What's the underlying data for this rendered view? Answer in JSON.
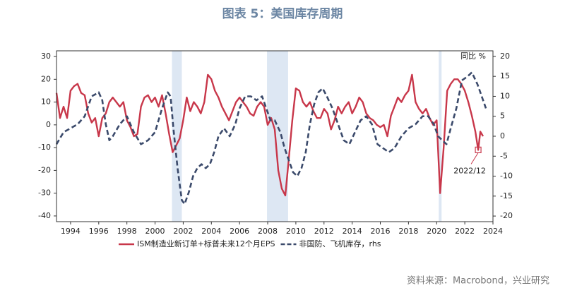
{
  "chart_data": {
    "type": "line",
    "title": "图表 5：美国库存周期",
    "source": "资料来源：Macrobond，兴业研究",
    "y2_label": "同比 %",
    "xlim": [
      1993,
      2024
    ],
    "xticks": [
      1994,
      1996,
      1998,
      2000,
      2002,
      2004,
      2006,
      2008,
      2010,
      2012,
      2014,
      2016,
      2018,
      2020,
      2022,
      2024
    ],
    "ylim": [
      -42.5,
      32.5
    ],
    "yticks": [
      30,
      20,
      10,
      0,
      -10,
      -20,
      -30,
      -40
    ],
    "y2lim": [
      -21.4,
      21.4
    ],
    "y2ticks": [
      20,
      15,
      10,
      5,
      0,
      -5,
      -10,
      -15,
      -20
    ],
    "shaded": [
      [
        2001.2,
        2001.9
      ],
      [
        2007.95,
        2009.45
      ],
      [
        2020.15,
        2020.35
      ]
    ],
    "shade_color": "#dde7f3",
    "annotation": {
      "text": "2022/12",
      "x": 2022.95,
      "y": -11
    },
    "series": [
      {
        "name": "ISM制造业新订单+标普未来12个月EPS",
        "color": "#c8374a",
        "dash": false,
        "x": [
          1993,
          1993.25,
          1993.5,
          1993.75,
          1994,
          1994.25,
          1994.5,
          1994.75,
          1995,
          1995.25,
          1995.5,
          1995.75,
          1996,
          1996.25,
          1996.5,
          1996.75,
          1997,
          1997.25,
          1997.5,
          1997.75,
          1998,
          1998.25,
          1998.5,
          1998.75,
          1999,
          1999.25,
          1999.5,
          1999.75,
          2000,
          2000.25,
          2000.5,
          2000.75,
          2001,
          2001.25,
          2001.5,
          2001.75,
          2002,
          2002.25,
          2002.5,
          2002.75,
          2003,
          2003.25,
          2003.5,
          2003.75,
          2004,
          2004.25,
          2004.5,
          2004.75,
          2005,
          2005.25,
          2005.5,
          2005.75,
          2006,
          2006.25,
          2006.5,
          2006.75,
          2007,
          2007.25,
          2007.5,
          2007.75,
          2008,
          2008.25,
          2008.5,
          2008.75,
          2009,
          2009.25,
          2009.5,
          2009.75,
          2010,
          2010.25,
          2010.5,
          2010.75,
          2011,
          2011.25,
          2011.5,
          2011.75,
          2012,
          2012.25,
          2012.5,
          2012.75,
          2013,
          2013.25,
          2013.5,
          2013.75,
          2014,
          2014.25,
          2014.5,
          2014.75,
          2015,
          2015.25,
          2015.5,
          2015.75,
          2016,
          2016.25,
          2016.5,
          2016.75,
          2017,
          2017.25,
          2017.5,
          2017.75,
          2018,
          2018.25,
          2018.5,
          2018.75,
          2019,
          2019.25,
          2019.5,
          2019.75,
          2020,
          2020.25,
          2020.5,
          2020.75,
          2021,
          2021.25,
          2021.5,
          2021.75,
          2022,
          2022.25,
          2022.5,
          2022.75,
          2022.95,
          2023.1,
          2023.3
        ],
        "values": [
          14,
          3,
          8,
          3,
          15,
          17,
          18,
          14,
          13,
          5,
          1,
          3,
          -5,
          3,
          5,
          10,
          12,
          10,
          8,
          10,
          2,
          -1,
          -5,
          -4,
          8,
          12,
          13,
          10,
          12,
          8,
          13,
          5,
          -4,
          -12,
          -9,
          -6,
          2,
          12,
          6,
          10,
          8,
          5,
          10,
          22,
          20,
          15,
          12,
          8,
          5,
          2,
          6,
          10,
          12,
          10,
          8,
          5,
          4,
          8,
          10,
          8,
          0,
          3,
          -2,
          -20,
          -28,
          -31,
          -15,
          2,
          16,
          15,
          10,
          8,
          10,
          6,
          3,
          3,
          7,
          5,
          -2,
          2,
          8,
          5,
          8,
          10,
          5,
          8,
          12,
          10,
          5,
          3,
          2,
          0,
          -1,
          0,
          -5,
          4,
          8,
          12,
          10,
          13,
          15,
          22,
          10,
          7,
          5,
          7,
          3,
          0,
          2,
          -30,
          -10,
          15,
          18,
          20,
          20,
          18,
          15,
          10,
          4,
          -3,
          -11,
          -3,
          -5
        ]
      },
      {
        "name": "非国防、飞机库存，rhs",
        "color": "#3b4a6b",
        "dash": true,
        "axis": "y2",
        "x": [
          1993,
          1993.5,
          1994,
          1994.5,
          1995,
          1995.5,
          1996,
          1996.25,
          1996.5,
          1996.75,
          1997,
          1997.5,
          1998,
          1998.5,
          1999,
          1999.5,
          2000,
          2000.5,
          2000.9,
          2001.1,
          2001.3,
          2001.6,
          2001.9,
          2002.1,
          2002.4,
          2002.7,
          2003,
          2003.3,
          2003.6,
          2003.9,
          2004.2,
          2004.5,
          2004.9,
          2005.3,
          2005.7,
          2006,
          2006.4,
          2006.8,
          2007.2,
          2007.6,
          2007.9,
          2008.2,
          2008.5,
          2008.9,
          2009.2,
          2009.5,
          2009.8,
          2010.1,
          2010.4,
          2010.7,
          2011,
          2011.3,
          2011.6,
          2011.9,
          2012.2,
          2012.6,
          2013,
          2013.4,
          2013.8,
          2014.2,
          2014.6,
          2015,
          2015.4,
          2015.8,
          2016.2,
          2016.6,
          2017,
          2017.5,
          2018,
          2018.5,
          2019,
          2019.4,
          2019.8,
          2020.1,
          2020.4,
          2020.7,
          2021,
          2021.4,
          2021.8,
          2022.2,
          2022.5,
          2022.9,
          2023.2,
          2023.5
        ],
        "values": [
          -2,
          1,
          2,
          3,
          5,
          10,
          11,
          9,
          3,
          -1,
          0,
          3,
          5,
          1,
          -2,
          -1,
          1,
          7,
          11,
          10,
          2,
          -8,
          -16,
          -17,
          -14,
          -10,
          -8,
          -7,
          -8,
          -7,
          -4,
          0,
          2,
          0,
          3,
          7,
          10,
          10,
          9,
          10,
          7,
          4,
          4,
          1,
          -3,
          -6,
          -9,
          -10,
          -8,
          -4,
          3,
          8,
          11,
          12,
          10,
          7,
          3,
          -1,
          -2,
          1,
          4,
          5,
          3,
          -2,
          -3,
          -4,
          -3,
          0,
          2,
          3,
          5,
          5,
          3,
          0,
          -1,
          -2,
          2,
          7,
          14,
          15,
          16,
          13,
          10,
          7
        ]
      }
    ]
  }
}
